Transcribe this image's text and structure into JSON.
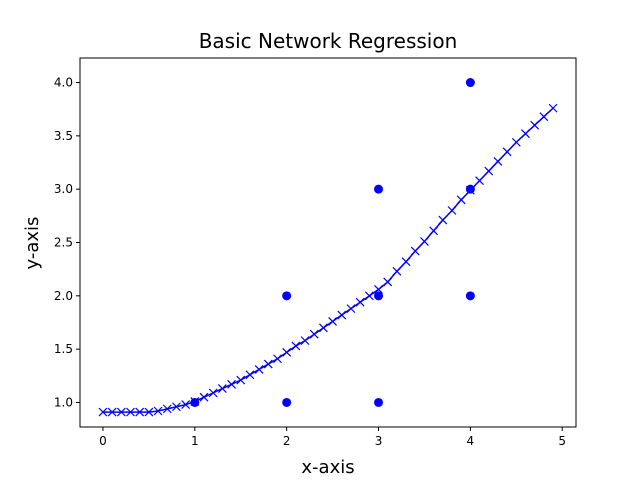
{
  "chart_data": {
    "type": "scatter",
    "title": "Basic Network Regression",
    "xlabel": "x-axis",
    "ylabel": "y-axis",
    "xlim": [
      -0.25,
      5.15
    ],
    "ylim": [
      0.77,
      4.23
    ],
    "xticks": [
      0,
      1,
      2,
      3,
      4,
      5
    ],
    "xtick_labels": [
      "0",
      "1",
      "2",
      "3",
      "4",
      "5"
    ],
    "yticks": [
      1.0,
      1.5,
      2.0,
      2.5,
      3.0,
      3.5,
      4.0
    ],
    "ytick_labels": [
      "1.0",
      "1.5",
      "2.0",
      "2.5",
      "3.0",
      "3.5",
      "4.0"
    ],
    "grid": false,
    "series": [
      {
        "type": "scatter",
        "marker": "circle",
        "color": "#0000ff",
        "points": [
          [
            1,
            1
          ],
          [
            2,
            1
          ],
          [
            2,
            2
          ],
          [
            3,
            1
          ],
          [
            3,
            2
          ],
          [
            3,
            3
          ],
          [
            4,
            2
          ],
          [
            4,
            3
          ],
          [
            4,
            4
          ]
        ]
      },
      {
        "type": "line",
        "marker": "x",
        "color": "#0000ff",
        "x": [
          0.0,
          0.1,
          0.2,
          0.3,
          0.4,
          0.5,
          0.6,
          0.7,
          0.8,
          0.9,
          1.0,
          1.1,
          1.2,
          1.3,
          1.4,
          1.5,
          1.6,
          1.7,
          1.8,
          1.9,
          2.0,
          2.1,
          2.2,
          2.3,
          2.4,
          2.5,
          2.6,
          2.7,
          2.8,
          2.9,
          3.0,
          3.1,
          3.2,
          3.3,
          3.4,
          3.5,
          3.6,
          3.7,
          3.8,
          3.9,
          4.0,
          4.1,
          4.2,
          4.3,
          4.4,
          4.5,
          4.6,
          4.7,
          4.8,
          4.9
        ],
        "y": [
          0.91,
          0.91,
          0.91,
          0.91,
          0.91,
          0.91,
          0.92,
          0.94,
          0.96,
          0.98,
          1.01,
          1.05,
          1.09,
          1.13,
          1.17,
          1.21,
          1.26,
          1.31,
          1.36,
          1.41,
          1.47,
          1.53,
          1.58,
          1.64,
          1.7,
          1.76,
          1.82,
          1.88,
          1.94,
          2.0,
          2.06,
          2.13,
          2.23,
          2.32,
          2.42,
          2.51,
          2.61,
          2.71,
          2.8,
          2.9,
          2.99,
          3.08,
          3.17,
          3.26,
          3.35,
          3.44,
          3.52,
          3.6,
          3.68,
          3.76
        ]
      }
    ]
  }
}
